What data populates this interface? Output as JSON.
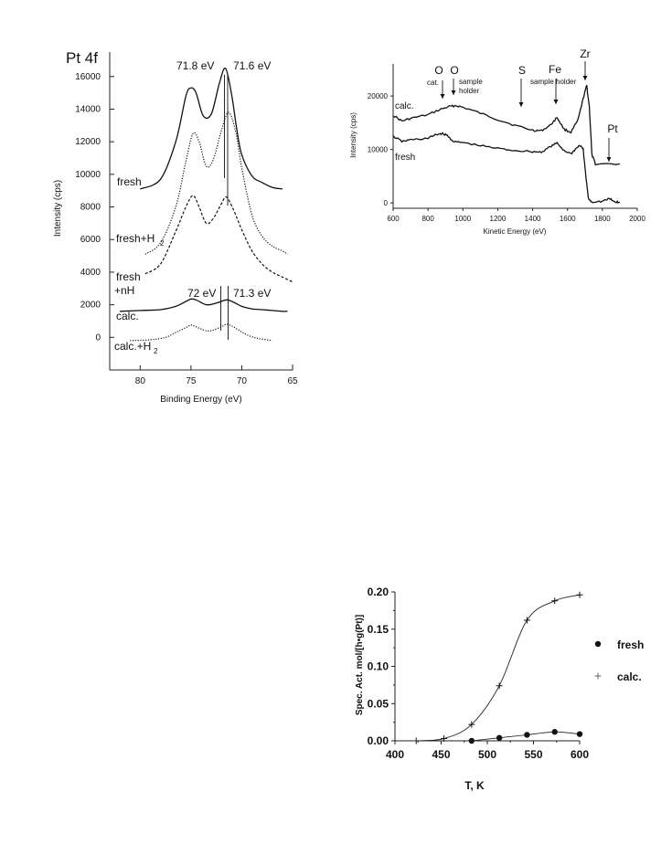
{
  "chart_data": [
    {
      "type": "line",
      "title": "Pt 4f",
      "xlabel": "Binding Energy (eV)",
      "ylabel": "Intensity (cps)",
      "xlim": [
        83,
        65
      ],
      "ylim": [
        -2000,
        17500
      ],
      "x_ticks": [
        80,
        75,
        70,
        65
      ],
      "y_ticks": [
        0,
        2000,
        4000,
        6000,
        8000,
        10000,
        12000,
        14000,
        16000
      ],
      "annotations": [
        "71.8 eV",
        "71.6 eV",
        "72 eV",
        "71.3 eV"
      ],
      "series": [
        {
          "name": "fresh",
          "style": "solid",
          "x": [
            80,
            78,
            76.5,
            75.5,
            75,
            74.5,
            73.8,
            73,
            72.2,
            71.6,
            71,
            70.5,
            70,
            69,
            68,
            67,
            66
          ],
          "y": [
            9100,
            9700,
            12000,
            14800,
            15300,
            15000,
            13600,
            13700,
            15600,
            16500,
            14900,
            12800,
            11200,
            9900,
            9500,
            9200,
            9100
          ]
        },
        {
          "name": "fresh+H",
          "name_subscript": "2",
          "style": "dotted",
          "x": [
            79.5,
            78,
            76.5,
            75.5,
            74.8,
            74.2,
            73.5,
            72.8,
            72,
            71.3,
            70.6,
            70,
            69,
            68,
            67,
            66,
            65.5
          ],
          "y": [
            5100,
            5800,
            8000,
            10800,
            12500,
            12000,
            10500,
            10900,
            12700,
            13800,
            12600,
            10400,
            7500,
            6200,
            5600,
            5300,
            5100
          ]
        },
        {
          "name": "fresh +nH",
          "style": "dashed",
          "x": [
            79.5,
            78,
            76.5,
            75.5,
            74.8,
            74.2,
            73.5,
            72.8,
            72,
            71.5,
            70.8,
            70,
            69,
            68,
            67,
            66,
            65
          ],
          "y": [
            3900,
            4500,
            6500,
            8000,
            8700,
            8000,
            7000,
            7300,
            8200,
            8600,
            7800,
            6600,
            5300,
            4500,
            4000,
            3700,
            3400
          ]
        },
        {
          "name": "calc.",
          "style": "solid",
          "x": [
            82,
            80,
            78,
            76.5,
            75.5,
            75,
            74.5,
            73.5,
            72.5,
            71.5,
            70.8,
            70,
            69,
            68,
            67,
            66,
            65.5
          ],
          "y": [
            1600,
            1650,
            1700,
            1900,
            2200,
            2350,
            2300,
            2000,
            2100,
            2300,
            2150,
            1900,
            1750,
            1700,
            1650,
            1600,
            1600
          ]
        },
        {
          "name": "calc.+H",
          "name_subscript": "2",
          "style": "dotted",
          "x": [
            81,
            79,
            77.5,
            76.5,
            75.5,
            75,
            74.5,
            73.5,
            72.8,
            72,
            71.5,
            71,
            70.3,
            69.5,
            68.5,
            67.5,
            67
          ],
          "y": [
            -200,
            -150,
            0,
            300,
            600,
            750,
            650,
            400,
            450,
            650,
            800,
            700,
            450,
            150,
            -50,
            -150,
            -200
          ]
        }
      ]
    },
    {
      "type": "line",
      "xlabel": "Kinetic Energy (eV)",
      "ylabel": "Intensity (cps)",
      "xlim": [
        600,
        2000
      ],
      "ylim": [
        -1000,
        26000
      ],
      "x_ticks": [
        600,
        800,
        1000,
        1200,
        1400,
        1600,
        1800,
        2000
      ],
      "y_ticks": [
        0,
        10000,
        20000
      ],
      "peak_labels": [
        {
          "label": "O",
          "sublabel": "cat.",
          "x": 880
        },
        {
          "label": "O",
          "sublabel": "sample holder",
          "x": 950
        },
        {
          "label": "S",
          "x": 1340
        },
        {
          "label": "Fe",
          "sublabel": "sample holder",
          "x": 1540
        },
        {
          "label": "Zr",
          "x": 1710
        },
        {
          "label": "Pt",
          "x": 1830
        }
      ],
      "series": [
        {
          "name": "calc.",
          "x": [
            600,
            650,
            700,
            800,
            870,
            920,
            960,
            1000,
            1100,
            1200,
            1300,
            1400,
            1450,
            1500,
            1540,
            1580,
            1620,
            1660,
            1690,
            1710,
            1725,
            1740,
            1760,
            1900
          ],
          "y": [
            16400,
            15300,
            15800,
            16500,
            17500,
            18000,
            18200,
            17900,
            16800,
            15600,
            14500,
            13600,
            13500,
            14500,
            16000,
            13800,
            13200,
            15500,
            19500,
            22000,
            18000,
            9000,
            7300,
            7300
          ]
        },
        {
          "name": "fresh",
          "x": [
            600,
            650,
            700,
            800,
            850,
            880,
            910,
            950,
            1000,
            1100,
            1200,
            1300,
            1400,
            1450,
            1500,
            1540,
            1580,
            1620,
            1650,
            1670,
            1690,
            1705,
            1720,
            1740,
            1800,
            1840,
            1870,
            1900
          ],
          "y": [
            12500,
            11500,
            11800,
            12100,
            12800,
            13000,
            12600,
            11400,
            11300,
            10700,
            10200,
            9800,
            9600,
            9500,
            10500,
            11200,
            9800,
            9200,
            10200,
            10800,
            10000,
            5000,
            800,
            200,
            300,
            800,
            200,
            100
          ]
        }
      ]
    },
    {
      "type": "scatter",
      "xlabel": "T,  K",
      "ylabel": "Spec.  Act.  mol/[h•g(Pt)]",
      "xlim": [
        400,
        600
      ],
      "ylim": [
        0,
        0.2
      ],
      "x_ticks": [
        "400",
        "450",
        "500",
        "550",
        "600"
      ],
      "y_ticks": [
        "0.00",
        "0.05",
        "0.10",
        "0.15",
        "0.20"
      ],
      "legend_position": "right",
      "series": [
        {
          "name": "fresh",
          "marker": "filled-circle",
          "x": [
            483,
            513,
            543,
            573,
            600
          ],
          "y": [
            0.0,
            0.004,
            0.008,
            0.012,
            0.009
          ]
        },
        {
          "name": "calc.",
          "marker": "plus",
          "x": [
            423,
            453,
            483,
            513,
            543,
            573,
            600
          ],
          "y": [
            0.0,
            0.003,
            0.022,
            0.074,
            0.162,
            0.188,
            0.196
          ]
        }
      ]
    }
  ]
}
